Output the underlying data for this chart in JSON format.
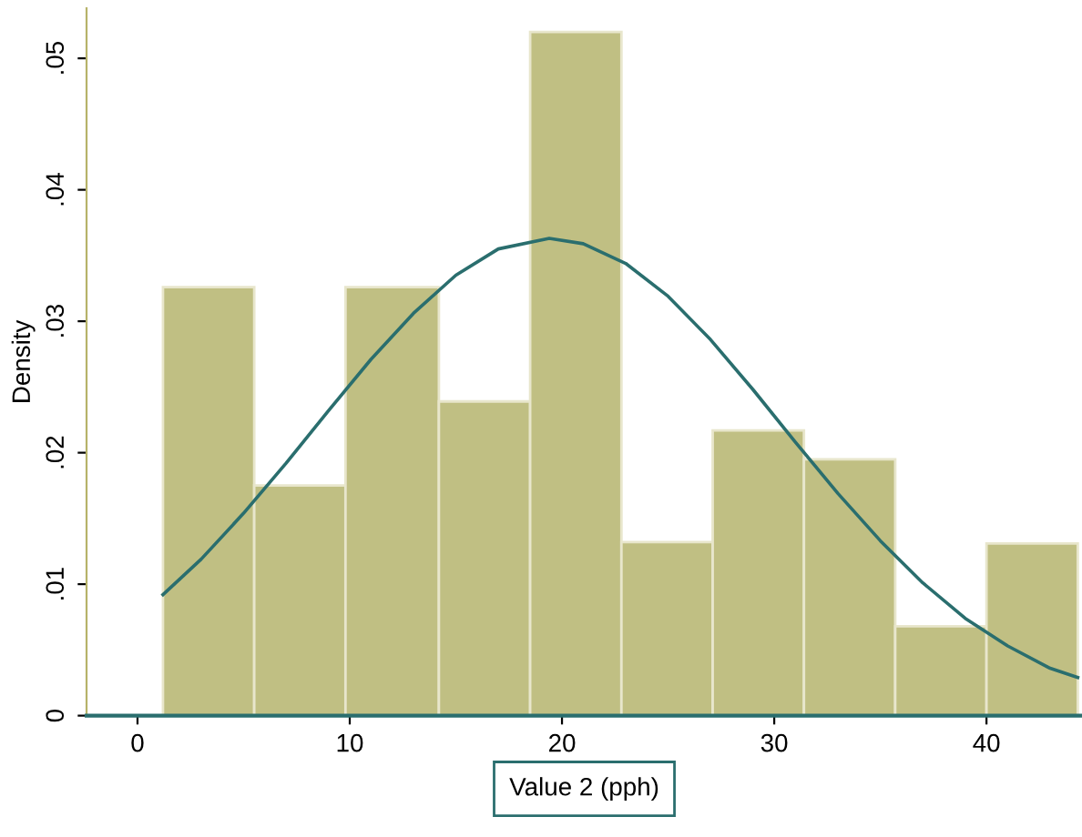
{
  "chart_data": {
    "type": "histogram",
    "xlabel": "Value 2 (pph)",
    "ylabel": "Density",
    "bins": [
      1.2,
      5.5,
      9.8,
      14.2,
      18.5,
      22.8,
      27.1,
      31.4,
      35.7,
      40.0,
      44.3
    ],
    "values": [
      0.0326,
      0.0175,
      0.0326,
      0.0239,
      0.052,
      0.0132,
      0.0217,
      0.0195,
      0.0068,
      0.0131
    ],
    "color": "#c0bf83",
    "series": [
      {
        "type": "line",
        "color": "#2a6e6e",
        "x": [
          1.2,
          3,
          5,
          7,
          9,
          11,
          13,
          15,
          17,
          19.4,
          21,
          23,
          25,
          27,
          29,
          31,
          33,
          35,
          37,
          39,
          41,
          43,
          44.3
        ],
        "values": [
          0.0092,
          0.0119,
          0.0154,
          0.0192,
          0.0232,
          0.0271,
          0.0306,
          0.0335,
          0.0355,
          0.0363,
          0.0359,
          0.0344,
          0.0319,
          0.0286,
          0.0248,
          0.0208,
          0.0169,
          0.0133,
          0.0101,
          0.0074,
          0.0053,
          0.0036,
          0.0029
        ]
      }
    ],
    "xlim": [
      -2.4,
      44.5
    ],
    "ylim": [
      0,
      0.0538
    ],
    "xticks": [
      0,
      10,
      20,
      30,
      40
    ],
    "yticks": [
      0,
      {
        "value": 0.01,
        "label": ".01"
      },
      {
        "value": 0.02,
        "label": ".02"
      },
      {
        "value": 0.03,
        "label": ".03"
      },
      {
        "value": 0.04,
        "label": ".04"
      },
      {
        "value": 0.05,
        "label": ".05"
      }
    ],
    "grid": false,
    "legend": false
  }
}
